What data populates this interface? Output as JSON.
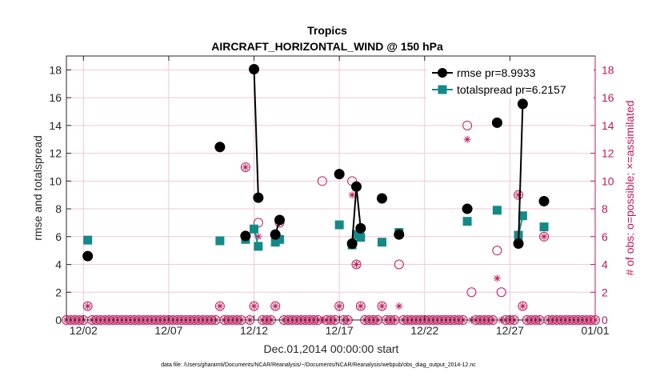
{
  "chart_data": {
    "type": "line",
    "title": "Tropics",
    "subtitle": "AIRCRAFT_HORIZONTAL_WIND @ 150 hPa",
    "xlabel": "Dec.01,2014 00:00:00 start",
    "ylabel": "rmse and totalspread",
    "ylabel_right": "# of obs: o=possible; ×=assimilated",
    "footnote": "data file: /Users/gharamti/Documents/NCAR/Reanalysis/~/Documents/NCAR/Reanalysis/webpub/obs_diag_output_2014-12.nc",
    "xlim": [
      1.0,
      32.0
    ],
    "ylim": [
      0,
      19
    ],
    "ylim_right": [
      0,
      19
    ],
    "x_ticks": [
      2,
      7,
      12,
      17,
      22,
      27,
      32
    ],
    "x_tick_labels": [
      "12/02",
      "12/07",
      "12/12",
      "12/17",
      "12/22",
      "12/27",
      "01/01"
    ],
    "y_ticks": [
      0,
      2,
      4,
      6,
      8,
      10,
      12,
      14,
      16,
      18
    ],
    "y_tick_labels": [
      "0",
      "2",
      "4",
      "6",
      "8",
      "10",
      "12",
      "14",
      "16",
      "18"
    ],
    "y_ticks_right": [
      0,
      2,
      4,
      6,
      8,
      10,
      12,
      14,
      16,
      18
    ],
    "y_tick_labels_right": [
      "0",
      "2",
      "4",
      "6",
      "8",
      "10",
      "12",
      "14",
      "16",
      "18"
    ],
    "grid": true,
    "legend_position": "top-right",
    "series": [
      {
        "name": "rmse pr=8.9933",
        "color": "#000000",
        "marker": "circle",
        "segments": [
          [
            [
              2.25,
              4.6
            ]
          ],
          [
            [
              10.0,
              12.45
            ]
          ],
          [
            [
              11.5,
              6.05
            ]
          ],
          [
            [
              12.0,
              18.05
            ],
            [
              12.25,
              8.8
            ]
          ],
          [
            [
              13.25,
              6.15
            ],
            [
              13.5,
              7.2
            ]
          ],
          [
            [
              17.0,
              10.5
            ]
          ],
          [
            [
              17.75,
              5.5
            ],
            [
              18.0,
              9.6
            ],
            [
              18.25,
              6.6
            ]
          ],
          [
            [
              19.5,
              8.75
            ]
          ],
          [
            [
              20.5,
              6.15
            ]
          ],
          [
            [
              24.5,
              8.0
            ]
          ],
          [
            [
              26.25,
              14.2
            ]
          ],
          [
            [
              27.5,
              5.5
            ],
            [
              27.75,
              15.55
            ]
          ],
          [
            [
              29.0,
              8.55
            ]
          ]
        ]
      },
      {
        "name": "totalspread pr=6.2157",
        "color": "#138a87",
        "marker": "square",
        "segments": [
          [
            [
              2.25,
              5.75
            ]
          ],
          [
            [
              10.0,
              5.7
            ]
          ],
          [
            [
              11.5,
              5.8
            ]
          ],
          [
            [
              12.0,
              6.55
            ],
            [
              12.25,
              5.3
            ]
          ],
          [
            [
              13.25,
              5.6
            ],
            [
              13.5,
              5.8
            ]
          ],
          [
            [
              17.0,
              6.85
            ]
          ],
          [
            [
              17.75,
              5.4
            ],
            [
              18.0,
              6.15
            ],
            [
              18.25,
              5.95
            ]
          ],
          [
            [
              19.5,
              5.6
            ]
          ],
          [
            [
              20.5,
              6.3
            ]
          ],
          [
            [
              24.5,
              7.1
            ]
          ],
          [
            [
              26.25,
              7.9
            ]
          ],
          [
            [
              27.5,
              6.1
            ],
            [
              27.75,
              7.5
            ]
          ],
          [
            [
              29.0,
              6.7
            ]
          ]
        ]
      }
    ],
    "obs_possible_nonzero": [
      [
        2.25,
        1
      ],
      [
        10.0,
        1
      ],
      [
        11.5,
        11
      ],
      [
        12.0,
        1
      ],
      [
        12.25,
        7
      ],
      [
        13.25,
        1
      ],
      [
        13.5,
        7
      ],
      [
        16.0,
        10
      ],
      [
        17.0,
        1
      ],
      [
        17.75,
        10
      ],
      [
        18.0,
        4
      ],
      [
        18.25,
        1
      ],
      [
        19.5,
        1
      ],
      [
        20.5,
        4
      ],
      [
        24.5,
        14
      ],
      [
        24.75,
        2
      ],
      [
        26.25,
        5
      ],
      [
        26.5,
        2
      ],
      [
        27.5,
        9
      ],
      [
        27.75,
        1
      ],
      [
        29.0,
        6
      ]
    ],
    "obs_assimilated_nonzero": [
      [
        2.25,
        1
      ],
      [
        10.0,
        1
      ],
      [
        11.5,
        11
      ],
      [
        12.0,
        1
      ],
      [
        12.25,
        6
      ],
      [
        13.25,
        1
      ],
      [
        13.5,
        7
      ],
      [
        17.0,
        1
      ],
      [
        17.75,
        9
      ],
      [
        18.0,
        4
      ],
      [
        18.25,
        1
      ],
      [
        19.5,
        1
      ],
      [
        20.5,
        1
      ],
      [
        24.5,
        13
      ],
      [
        26.25,
        3
      ],
      [
        27.5,
        9
      ],
      [
        27.75,
        1
      ],
      [
        29.0,
        6
      ]
    ],
    "obs_zero_spacing_days": 0.25
  },
  "colors": {
    "rmse": "#000000",
    "totalspread": "#138a87",
    "obs": "#c2185b",
    "grid": "#f0c8d8",
    "axis": "#262626"
  }
}
